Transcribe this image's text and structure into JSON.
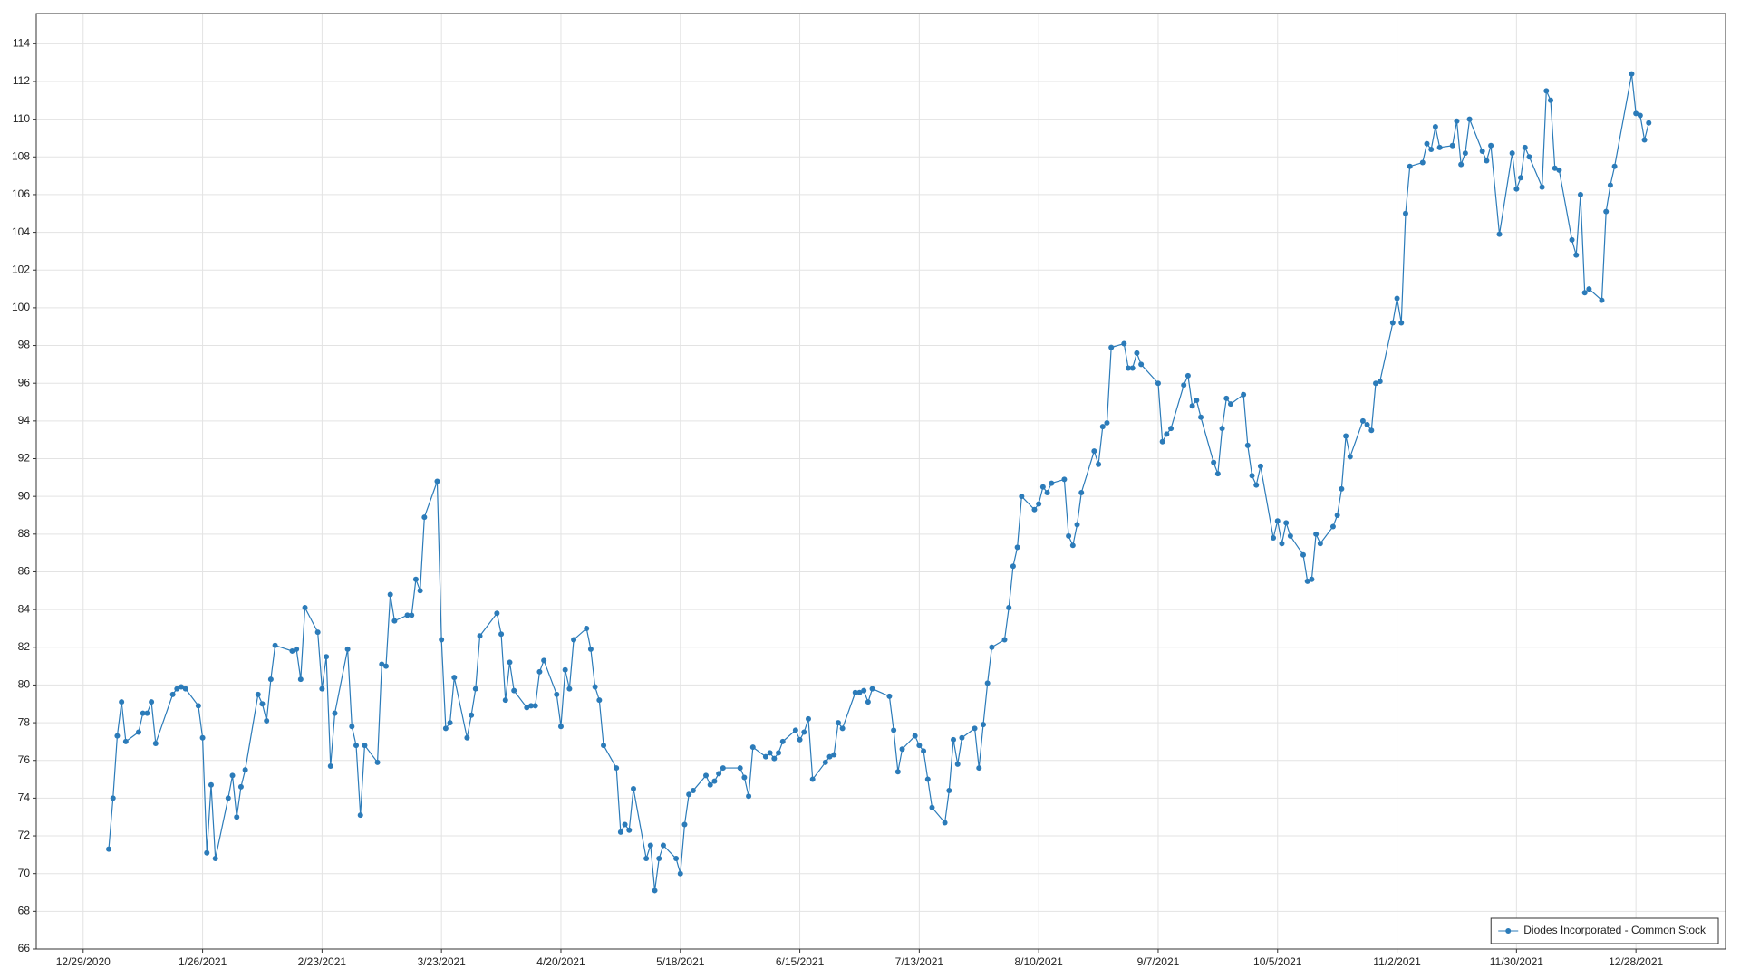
{
  "chart_data": {
    "type": "line",
    "x": [
      "1/4/2021",
      "1/5/2021",
      "1/6/2021",
      "1/7/2021",
      "1/8/2021",
      "1/11/2021",
      "1/12/2021",
      "1/13/2021",
      "1/14/2021",
      "1/15/2021",
      "1/19/2021",
      "1/20/2021",
      "1/21/2021",
      "1/22/2021",
      "1/25/2021",
      "1/26/2021",
      "1/27/2021",
      "1/28/2021",
      "1/29/2021",
      "2/1/2021",
      "2/2/2021",
      "2/3/2021",
      "2/4/2021",
      "2/5/2021",
      "2/8/2021",
      "2/9/2021",
      "2/10/2021",
      "2/11/2021",
      "2/12/2021",
      "2/16/2021",
      "2/17/2021",
      "2/18/2021",
      "2/19/2021",
      "2/22/2021",
      "2/23/2021",
      "2/24/2021",
      "2/25/2021",
      "2/26/2021",
      "3/1/2021",
      "3/2/2021",
      "3/3/2021",
      "3/4/2021",
      "3/5/2021",
      "3/8/2021",
      "3/9/2021",
      "3/10/2021",
      "3/11/2021",
      "3/12/2021",
      "3/15/2021",
      "3/16/2021",
      "3/17/2021",
      "3/18/2021",
      "3/19/2021",
      "3/22/2021",
      "3/23/2021",
      "3/24/2021",
      "3/25/2021",
      "3/26/2021",
      "3/29/2021",
      "3/30/2021",
      "3/31/2021",
      "4/1/2021",
      "4/5/2021",
      "4/6/2021",
      "4/7/2021",
      "4/8/2021",
      "4/9/2021",
      "4/12/2021",
      "4/13/2021",
      "4/14/2021",
      "4/15/2021",
      "4/16/2021",
      "4/19/2021",
      "4/20/2021",
      "4/21/2021",
      "4/22/2021",
      "4/23/2021",
      "4/26/2021",
      "4/27/2021",
      "4/28/2021",
      "4/29/2021",
      "4/30/2021",
      "5/3/2021",
      "5/4/2021",
      "5/5/2021",
      "5/6/2021",
      "5/7/2021",
      "5/10/2021",
      "5/11/2021",
      "5/12/2021",
      "5/13/2021",
      "5/14/2021",
      "5/17/2021",
      "5/18/2021",
      "5/19/2021",
      "5/20/2021",
      "5/21/2021",
      "5/24/2021",
      "5/25/2021",
      "5/26/2021",
      "5/27/2021",
      "5/28/2021",
      "6/1/2021",
      "6/2/2021",
      "6/3/2021",
      "6/4/2021",
      "6/7/2021",
      "6/8/2021",
      "6/9/2021",
      "6/10/2021",
      "6/11/2021",
      "6/14/2021",
      "6/15/2021",
      "6/16/2021",
      "6/17/2021",
      "6/18/2021",
      "6/21/2021",
      "6/22/2021",
      "6/23/2021",
      "6/24/2021",
      "6/25/2021",
      "6/28/2021",
      "6/29/2021",
      "6/30/2021",
      "7/1/2021",
      "7/2/2021",
      "7/6/2021",
      "7/7/2021",
      "7/8/2021",
      "7/9/2021",
      "7/12/2021",
      "7/13/2021",
      "7/14/2021",
      "7/15/2021",
      "7/16/2021",
      "7/19/2021",
      "7/20/2021",
      "7/21/2021",
      "7/22/2021",
      "7/23/2021",
      "7/26/2021",
      "7/27/2021",
      "7/28/2021",
      "7/29/2021",
      "7/30/2021",
      "8/2/2021",
      "8/3/2021",
      "8/4/2021",
      "8/5/2021",
      "8/6/2021",
      "8/9/2021",
      "8/10/2021",
      "8/11/2021",
      "8/12/2021",
      "8/13/2021",
      "8/16/2021",
      "8/17/2021",
      "8/18/2021",
      "8/19/2021",
      "8/20/2021",
      "8/23/2021",
      "8/24/2021",
      "8/25/2021",
      "8/26/2021",
      "8/27/2021",
      "8/30/2021",
      "8/31/2021",
      "9/1/2021",
      "9/2/2021",
      "9/3/2021",
      "9/7/2021",
      "9/8/2021",
      "9/9/2021",
      "9/10/2021",
      "9/13/2021",
      "9/14/2021",
      "9/15/2021",
      "9/16/2021",
      "9/17/2021",
      "9/20/2021",
      "9/21/2021",
      "9/22/2021",
      "9/23/2021",
      "9/24/2021",
      "9/27/2021",
      "9/28/2021",
      "9/29/2021",
      "9/30/2021",
      "10/1/2021",
      "10/4/2021",
      "10/5/2021",
      "10/6/2021",
      "10/7/2021",
      "10/8/2021",
      "10/11/2021",
      "10/12/2021",
      "10/13/2021",
      "10/14/2021",
      "10/15/2021",
      "10/18/2021",
      "10/19/2021",
      "10/20/2021",
      "10/21/2021",
      "10/22/2021",
      "10/25/2021",
      "10/26/2021",
      "10/27/2021",
      "10/28/2021",
      "10/29/2021",
      "11/1/2021",
      "11/2/2021",
      "11/3/2021",
      "11/4/2021",
      "11/5/2021",
      "11/8/2021",
      "11/9/2021",
      "11/10/2021",
      "11/11/2021",
      "11/12/2021",
      "11/15/2021",
      "11/16/2021",
      "11/17/2021",
      "11/18/2021",
      "11/19/2021",
      "11/22/2021",
      "11/23/2021",
      "11/24/2021",
      "11/26/2021",
      "11/29/2021",
      "11/30/2021",
      "12/1/2021",
      "12/2/2021",
      "12/3/2021",
      "12/6/2021",
      "12/7/2021",
      "12/8/2021",
      "12/9/2021",
      "12/10/2021",
      "12/13/2021",
      "12/14/2021",
      "12/15/2021",
      "12/16/2021",
      "12/17/2021",
      "12/20/2021",
      "12/21/2021",
      "12/22/2021",
      "12/23/2021",
      "12/27/2021",
      "12/28/2021",
      "12/29/2021",
      "12/30/2021",
      "12/31/2021"
    ],
    "series": [
      {
        "name": "Diodes Incorporated - Common Stock",
        "color": "#2b7bb9",
        "values": [
          71.3,
          74.0,
          77.3,
          79.1,
          77.0,
          77.5,
          78.5,
          78.5,
          79.1,
          76.9,
          79.5,
          79.8,
          79.9,
          79.8,
          78.9,
          77.2,
          71.1,
          74.7,
          70.8,
          74.0,
          75.2,
          73.0,
          74.6,
          75.5,
          79.5,
          79.0,
          78.1,
          80.3,
          82.1,
          81.8,
          81.9,
          80.3,
          84.1,
          82.8,
          79.8,
          81.5,
          75.7,
          78.5,
          81.9,
          77.8,
          76.8,
          73.1,
          76.8,
          75.9,
          81.1,
          81.0,
          84.8,
          83.4,
          83.7,
          83.7,
          85.6,
          85.0,
          88.9,
          90.8,
          82.4,
          77.7,
          78.0,
          80.4,
          77.2,
          78.4,
          79.8,
          82.6,
          83.8,
          82.7,
          79.2,
          81.2,
          79.7,
          78.8,
          78.9,
          78.9,
          80.7,
          81.3,
          79.5,
          77.8,
          80.8,
          79.8,
          82.4,
          83.0,
          81.9,
          79.9,
          79.2,
          76.8,
          75.6,
          72.2,
          72.6,
          72.3,
          74.5,
          70.8,
          71.5,
          69.1,
          70.8,
          71.5,
          70.8,
          70.0,
          72.6,
          74.2,
          74.4,
          75.2,
          74.7,
          74.9,
          75.3,
          75.6,
          75.6,
          75.1,
          74.1,
          76.7,
          76.2,
          76.4,
          76.1,
          76.4,
          77.0,
          77.6,
          77.1,
          77.5,
          78.2,
          75.0,
          75.9,
          76.2,
          76.3,
          78.0,
          77.7,
          79.6,
          79.6,
          79.7,
          79.1,
          79.8,
          79.4,
          77.6,
          75.4,
          76.6,
          77.3,
          76.8,
          76.5,
          75.0,
          73.5,
          72.7,
          74.4,
          77.1,
          75.8,
          77.2,
          77.7,
          75.6,
          77.9,
          80.1,
          82.0,
          82.4,
          84.1,
          86.3,
          87.3,
          90.0,
          89.3,
          89.6,
          90.5,
          90.2,
          90.7,
          90.9,
          87.9,
          87.4,
          88.5,
          90.2,
          92.4,
          91.7,
          93.7,
          93.9,
          97.9,
          98.1,
          96.8,
          96.8,
          97.6,
          97.0,
          96.0,
          92.9,
          93.3,
          93.6,
          95.9,
          96.4,
          94.8,
          95.1,
          94.2,
          91.8,
          91.2,
          93.6,
          95.2,
          94.9,
          95.4,
          92.7,
          91.1,
          90.6,
          91.6,
          87.8,
          88.7,
          87.5,
          88.6,
          87.9,
          86.9,
          85.5,
          85.6,
          88.0,
          87.5,
          88.4,
          89.0,
          90.4,
          93.2,
          92.1,
          94.0,
          93.8,
          93.5,
          96.0,
          96.1,
          99.2,
          100.5,
          99.2,
          105.0,
          107.5,
          107.7,
          108.7,
          108.4,
          109.6,
          108.5,
          108.6,
          109.9,
          107.6,
          108.2,
          110.0,
          108.3,
          107.8,
          108.6,
          103.9,
          108.2,
          106.3,
          106.9,
          108.5,
          108.0,
          106.4,
          111.5,
          111.0,
          107.4,
          107.3,
          103.6,
          102.8,
          106.0,
          100.8,
          101.0,
          100.4,
          105.1,
          106.5,
          107.5,
          112.4,
          110.3,
          110.2,
          108.9,
          109.8
        ]
      }
    ],
    "xlim": [
      "12/18/2020",
      "1/18/2022"
    ],
    "xticks": [
      "12/29/2020",
      "1/26/2021",
      "2/23/2021",
      "3/23/2021",
      "4/20/2021",
      "5/18/2021",
      "6/15/2021",
      "7/13/2021",
      "8/10/2021",
      "9/7/2021",
      "10/5/2021",
      "11/2/2021",
      "11/30/2021",
      "12/28/2021"
    ],
    "ylim": [
      66,
      115.6
    ],
    "yticks": [
      66,
      68,
      70,
      72,
      74,
      76,
      78,
      80,
      82,
      84,
      86,
      88,
      90,
      92,
      94,
      96,
      98,
      100,
      102,
      104,
      106,
      108,
      110,
      112,
      114
    ],
    "grid": true,
    "markers": true,
    "legend": "lower right"
  }
}
